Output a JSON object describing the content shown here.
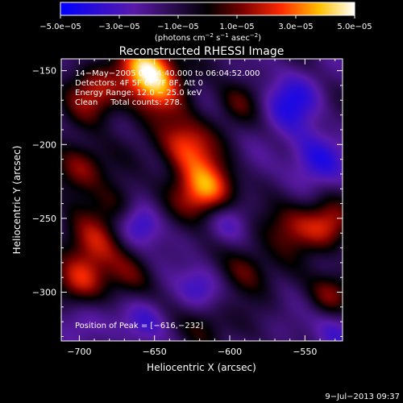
{
  "chart_data": {
    "type": "heatmap",
    "title": "Reconstructed RHESSI Image",
    "xlabel": "Heliocentric X (arcsec)",
    "ylabel": "Heliocentric Y (arcsec)",
    "xlim": [
      -712,
      -525
    ],
    "ylim": [
      -333,
      -142
    ],
    "x_ticks": [
      -700,
      -650,
      -600,
      -550
    ],
    "x_tick_labels": [
      "−700",
      "−650",
      "−600",
      "−550"
    ],
    "y_ticks": [
      -150,
      -200,
      -250,
      -300
    ],
    "y_tick_labels": [
      "−150",
      "−200",
      "−250",
      "−300"
    ],
    "colorbar": {
      "range": [
        -5e-05,
        5e-05
      ],
      "ticks": [
        -5e-05,
        -3e-05,
        -1e-05,
        1e-05,
        3e-05,
        5e-05
      ],
      "tick_labels": [
        "−5.0e−05",
        "−3.0e−05",
        "−1.0e−05",
        "1.0e−05",
        "3.0e−05",
        "5.0e−05"
      ],
      "unit_main": "(photons cm",
      "unit_exp1": "−2",
      "unit_mid": " s",
      "unit_exp2": "−1",
      "unit_mid2": " asec",
      "unit_exp3": "−2",
      "unit_end": ")"
    },
    "info_lines": [
      "14−May−2005 06:04:40.000 to 06:04:52.000",
      "Detectors: 4F 5F 6F 7F 8F, Att 0",
      "Energy Range: 12.0 − 25.0 keV",
      "Clean     Total counts: 278."
    ],
    "peak_label": "Position of Peak = [−616,−232]",
    "peak": [
      -616,
      -232
    ],
    "blobs": [
      {
        "x": -616,
        "y": -232,
        "amp": 1.0,
        "r": 14
      },
      {
        "x": -630,
        "y": -200,
        "amp": 0.75,
        "r": 14
      },
      {
        "x": -650,
        "y": -160,
        "amp": 0.8,
        "r": 14
      },
      {
        "x": -655,
        "y": -145,
        "amp": 0.75,
        "r": 12
      },
      {
        "x": -690,
        "y": -165,
        "amp": 0.6,
        "r": 14
      },
      {
        "x": -700,
        "y": -215,
        "amp": 0.6,
        "r": 12
      },
      {
        "x": -690,
        "y": -265,
        "amp": 0.6,
        "r": 13
      },
      {
        "x": -700,
        "y": -290,
        "amp": 0.7,
        "r": 12
      },
      {
        "x": -665,
        "y": -290,
        "amp": 0.35,
        "r": 12
      },
      {
        "x": -675,
        "y": -240,
        "amp": 0.35,
        "r": 11
      },
      {
        "x": -595,
        "y": -170,
        "amp": 0.35,
        "r": 11
      },
      {
        "x": -590,
        "y": -285,
        "amp": 0.5,
        "r": 12
      },
      {
        "x": -560,
        "y": -255,
        "amp": 0.55,
        "r": 13
      },
      {
        "x": -535,
        "y": -255,
        "amp": 0.55,
        "r": 12
      },
      {
        "x": -533,
        "y": -300,
        "amp": 0.5,
        "r": 11
      },
      {
        "x": -618,
        "y": -322,
        "amp": 0.4,
        "r": 11
      },
      {
        "x": -560,
        "y": -170,
        "amp": -0.5,
        "r": 14
      },
      {
        "x": -545,
        "y": -210,
        "amp": -0.5,
        "r": 14
      },
      {
        "x": -660,
        "y": -255,
        "amp": -0.5,
        "r": 11
      },
      {
        "x": -600,
        "y": -250,
        "amp": -0.45,
        "r": 11
      },
      {
        "x": -620,
        "y": -295,
        "amp": -0.45,
        "r": 11
      },
      {
        "x": -655,
        "y": -320,
        "amp": -0.4,
        "r": 11
      },
      {
        "x": -530,
        "y": -325,
        "amp": -0.4,
        "r": 11
      },
      {
        "x": -700,
        "y": -320,
        "amp": -0.35,
        "r": 11
      }
    ]
  },
  "timestamp": "9−Jul−2013 09:37"
}
